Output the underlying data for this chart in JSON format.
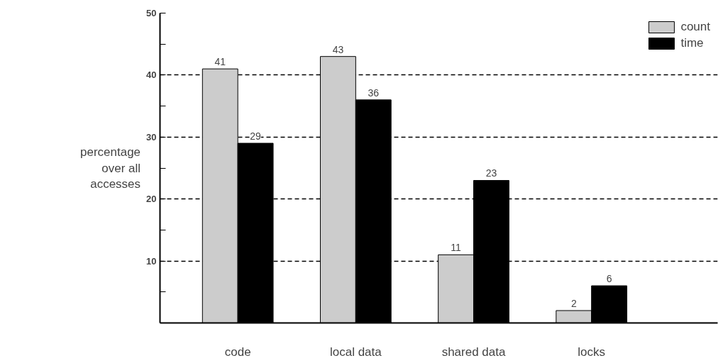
{
  "chart_data": {
    "type": "bar",
    "ylabel": "percentage over all accesses",
    "categories": [
      "code",
      "local data",
      "shared data",
      "locks"
    ],
    "series": [
      {
        "name": "count",
        "color": "#cccccc",
        "values": [
          41,
          43,
          11,
          2
        ]
      },
      {
        "name": "time",
        "color": "#000000",
        "values": [
          29,
          36,
          23,
          6
        ]
      }
    ],
    "ylim": [
      0,
      50
    ],
    "yticks": [
      {
        "value": 5,
        "label": null
      },
      10,
      {
        "value": 15,
        "label": null
      },
      20,
      {
        "value": 25,
        "label": null
      },
      30,
      {
        "value": 35,
        "label": null
      },
      40,
      {
        "value": 45,
        "label": null
      },
      50
    ],
    "grid": "y",
    "legend": "top right",
    "data_labels": true
  }
}
